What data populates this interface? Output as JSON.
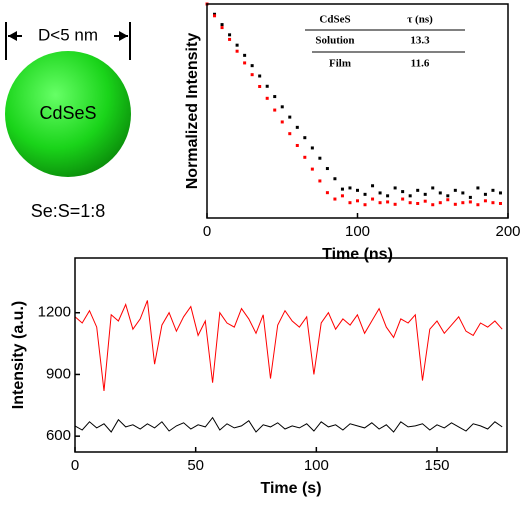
{
  "illustration": {
    "size_label": "D<5 nm",
    "core_label": "CdSeS",
    "ratio_label": "Se:S=1:8"
  },
  "chart_data": [
    {
      "type": "scatter",
      "xlabel": "Time (ns)",
      "ylabel": "Normalized Intensity",
      "xlim": [
        0,
        200
      ],
      "xticks": [
        0,
        100,
        200
      ],
      "ylim": [
        0.0004,
        1
      ],
      "log_y": true,
      "x": [
        0,
        5,
        10,
        15,
        20,
        25,
        30,
        35,
        40,
        45,
        50,
        55,
        60,
        65,
        70,
        75,
        80,
        85,
        90,
        95,
        100,
        105,
        110,
        115,
        120,
        125,
        130,
        135,
        140,
        145,
        150,
        155,
        160,
        165,
        170,
        175,
        180,
        185,
        190,
        195
      ],
      "series": [
        {
          "name": "Solution",
          "color": "#000000",
          "values": [
            1,
            0.687,
            0.471,
            0.324,
            0.222,
            0.153,
            0.105,
            0.0719,
            0.0494,
            0.0339,
            0.0233,
            0.016,
            0.011,
            0.00754,
            0.00518,
            0.00356,
            0.00244,
            0.00168,
            0.00115,
            0.0012,
            0.0011,
            0.00095,
            0.0013,
            0.001,
            0.0009,
            0.0012,
            0.00105,
            0.0009,
            0.0011,
            0.00095,
            0.0012,
            0.001,
            0.0009,
            0.0011,
            0.001,
            0.00085,
            0.0012,
            0.00095,
            0.0011,
            0.001
          ]
        },
        {
          "name": "Film",
          "color": "#ff0000",
          "values": [
            1,
            0.65,
            0.422,
            0.274,
            0.178,
            0.116,
            0.0755,
            0.049,
            0.0318,
            0.0207,
            0.0134,
            0.00873,
            0.00567,
            0.00368,
            0.00239,
            0.00155,
            0.00101,
            0.0008,
            0.0009,
            0.0007,
            0.00075,
            0.00065,
            0.0008,
            0.0007,
            0.00072,
            0.00066,
            0.0008,
            0.0007,
            0.00068,
            0.00074,
            0.00065,
            0.0007,
            0.00078,
            0.00066,
            0.0007,
            0.00072,
            0.00065,
            0.00075,
            0.0007,
            0.00068
          ]
        }
      ],
      "table": {
        "header": [
          "CdSeS",
          "τ (ns)"
        ],
        "rows": [
          [
            "Solution",
            13.3
          ],
          [
            "Film",
            11.6
          ]
        ]
      }
    },
    {
      "type": "line",
      "xlabel": "Time (s)",
      "ylabel": "Intensity (a.u.)",
      "xlim": [
        0,
        179
      ],
      "xticks": [
        0,
        50,
        100,
        150
      ],
      "ylim": [
        523,
        1466
      ],
      "yticks": [
        600,
        900,
        1200
      ],
      "x": [
        0,
        3,
        6,
        9,
        12,
        15,
        18,
        21,
        24,
        27,
        30,
        33,
        36,
        39,
        42,
        45,
        48,
        51,
        54,
        57,
        60,
        63,
        66,
        69,
        72,
        75,
        78,
        81,
        84,
        87,
        90,
        93,
        96,
        99,
        102,
        105,
        108,
        111,
        114,
        117,
        120,
        123,
        126,
        129,
        132,
        135,
        138,
        141,
        144,
        147,
        150,
        153,
        156,
        159,
        162,
        165,
        168,
        171,
        174,
        177
      ],
      "series": [
        {
          "name": "Film",
          "color": "#ff0000",
          "values": [
            1180,
            1150,
            1210,
            1130,
            820,
            1190,
            1160,
            1240,
            1120,
            1170,
            1260,
            950,
            1140,
            1200,
            1110,
            1180,
            1230,
            1090,
            1160,
            860,
            1200,
            1150,
            1130,
            1220,
            1170,
            1100,
            1190,
            880,
            1140,
            1210,
            1160,
            1130,
            1180,
            900,
            1150,
            1200,
            1120,
            1170,
            1140,
            1190,
            1100,
            1160,
            1220,
            1130,
            1080,
            1170,
            1150,
            1190,
            870,
            1120,
            1160,
            1100,
            1140,
            1180,
            1110,
            1090,
            1150,
            1130,
            1160,
            1120
          ]
        },
        {
          "name": "Solution",
          "color": "#000000",
          "values": [
            650,
            630,
            670,
            640,
            660,
            620,
            680,
            645,
            655,
            635,
            660,
            640,
            670,
            625,
            650,
            665,
            635,
            655,
            645,
            690,
            630,
            660,
            640,
            650,
            675,
            620,
            655,
            645,
            665,
            635,
            650,
            640,
            660,
            625,
            670,
            645,
            655,
            630,
            660,
            650,
            640,
            665,
            635,
            655,
            620,
            670,
            645,
            650,
            660,
            630,
            655,
            640,
            665,
            645,
            625,
            660,
            650,
            635,
            670,
            645
          ]
        }
      ]
    }
  ]
}
